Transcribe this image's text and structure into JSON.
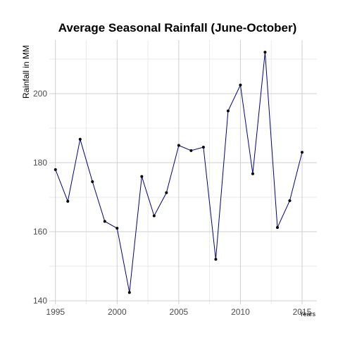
{
  "chart_data": {
    "type": "line",
    "title": "Average Seasonal Rainfall (June-October)",
    "xlabel": "Years",
    "ylabel": "Rainfall in MM",
    "x": [
      1995,
      1996,
      1997,
      1998,
      1999,
      2000,
      2001,
      2002,
      2003,
      2004,
      2005,
      2006,
      2007,
      2008,
      2009,
      2010,
      2011,
      2012,
      2013,
      2014,
      2015
    ],
    "series": [
      {
        "values": [
          178,
          168.8,
          186.8,
          174.5,
          163,
          161,
          142.4,
          176,
          164.6,
          171.3,
          185,
          183.5,
          184.5,
          152,
          195,
          202.5,
          176.8,
          212,
          161.2,
          169,
          183
        ]
      }
    ],
    "xlim": [
      1994.5,
      2016.2
    ],
    "ylim": [
      139,
      215.5
    ],
    "x_ticks": [
      1995,
      2000,
      2005,
      2010,
      2015
    ],
    "y_ticks": [
      140,
      160,
      180,
      200
    ],
    "x_tick_labels": [
      "1995",
      "2000",
      "2005",
      "2010",
      "2015"
    ],
    "y_tick_labels": [
      "140",
      "160",
      "180",
      "200"
    ],
    "grid": true,
    "legend": "none",
    "colors": {
      "line": "#000080",
      "point": "#000000",
      "grid": "#cfcfcf",
      "grid_minor": "#e6e6e6",
      "tick_text": "#4d4d4d"
    }
  }
}
